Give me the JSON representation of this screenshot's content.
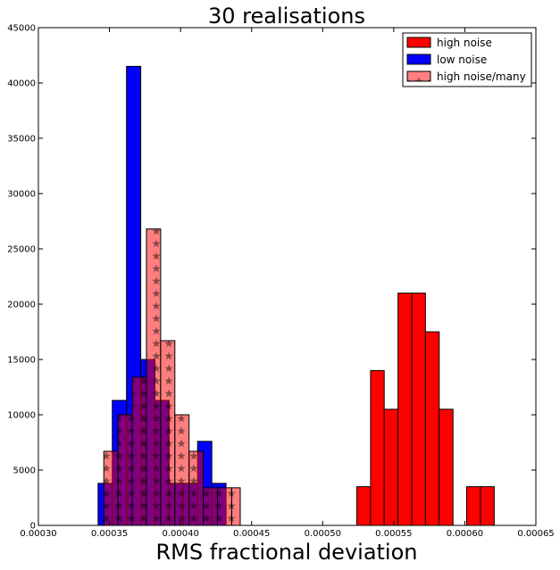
{
  "chart_data": {
    "type": "bar",
    "title": "30 realisations",
    "xlabel": "RMS fractional deviation",
    "ylabel": "",
    "xlim": [
      0.0003,
      0.00065
    ],
    "ylim": [
      0,
      45000
    ],
    "x_ticks": [
      "0.00030",
      "0.00035",
      "0.00040",
      "0.00045",
      "0.00050",
      "0.00055",
      "0.00060",
      "0.00065"
    ],
    "y_ticks": [
      "0",
      "5000",
      "10000",
      "15000",
      "20000",
      "25000",
      "30000",
      "35000",
      "40000",
      "45000"
    ],
    "legend_position": "top-right",
    "grid": false,
    "series": [
      {
        "name": "low noise",
        "color": "#0000ff",
        "alpha": 1.0,
        "hatch": "none",
        "bin_edges": [
          0.000342,
          0.000352,
          0.000362,
          0.000372,
          0.000382,
          0.000392,
          0.000402,
          0.000412,
          0.000422,
          0.000432
        ],
        "values": [
          3800,
          11300,
          41500,
          15000,
          11300,
          3800,
          3800,
          7600,
          3800
        ]
      },
      {
        "name": "high noise",
        "color": "#ff0000",
        "alpha": 1.0,
        "hatch": "none",
        "bin_edges": [
          0.000524,
          0.0005337,
          0.0005433,
          0.000553,
          0.0005627,
          0.0005723,
          0.000582,
          0.0005917,
          0.0006013,
          0.000611,
          0.0006207
        ],
        "values": [
          3500,
          14000,
          10500,
          21000,
          21000,
          17500,
          10500,
          0,
          3500,
          3500
        ]
      },
      {
        "name": "high noise/many",
        "color": "#ff0000",
        "alpha": 0.5,
        "hatch": "stars",
        "bin_edges": [
          0.000346,
          0.000356,
          0.000366,
          0.000376,
          0.000386,
          0.000396,
          0.000406,
          0.000416,
          0.000426,
          0.000436,
          0.000442
        ],
        "values": [
          6700,
          10000,
          13400,
          26800,
          16700,
          10000,
          6700,
          3400,
          3400,
          3400
        ]
      }
    ]
  }
}
